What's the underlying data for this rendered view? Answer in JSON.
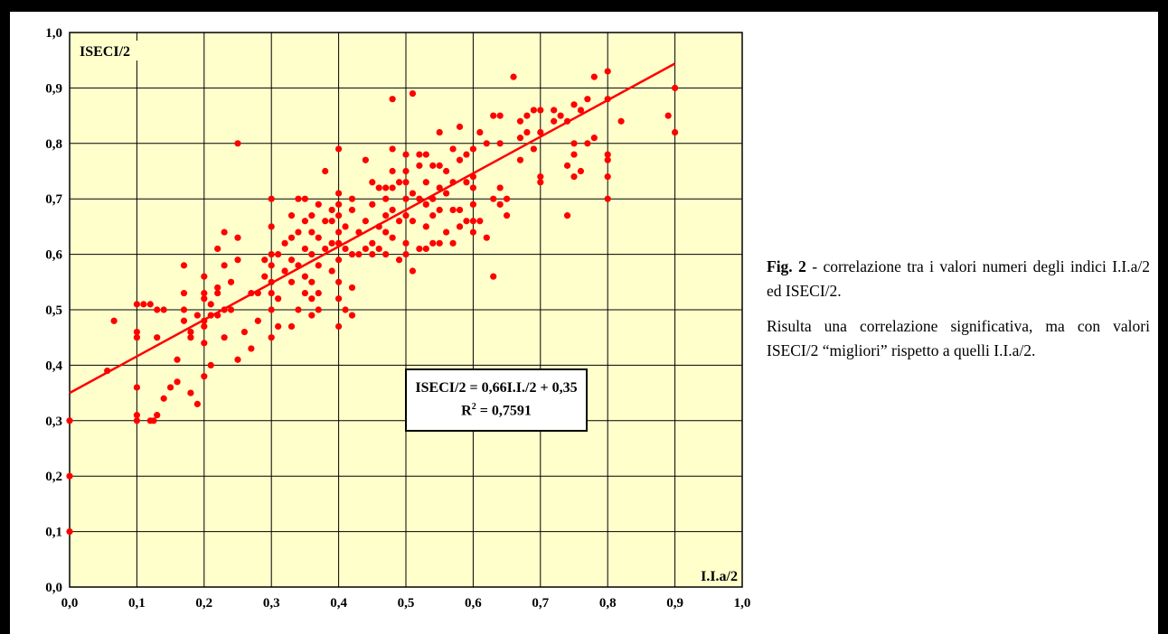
{
  "chart_data": {
    "type": "scatter",
    "ylabel": "ISECI/2",
    "xlabel": "I.I.a/2",
    "xlim": [
      0,
      1
    ],
    "ylim": [
      0,
      1
    ],
    "xticks": [
      "0,0",
      "0,1",
      "0,2",
      "0,3",
      "0,4",
      "0,5",
      "0,6",
      "0,7",
      "0,8",
      "0,9",
      "1,0"
    ],
    "yticks": [
      "0,0",
      "0,1",
      "0,2",
      "0,3",
      "0,4",
      "0,5",
      "0,6",
      "0,7",
      "0,8",
      "0,9",
      "1,0"
    ],
    "grid": true,
    "background": "#ffffcc",
    "point_color": "#ff0000",
    "trendline": {
      "slope": 0.66,
      "intercept": 0.35,
      "x_range": [
        0,
        0.9
      ],
      "color": "#ff0000"
    },
    "equation": {
      "line1": "ISECI/2 = 0,66I.I./2 + 0,35",
      "line2_prefix": "R",
      "line2_sup": "2",
      "line2_suffix": " = 0,7591"
    },
    "points": [
      [
        0,
        0.3
      ],
      [
        0,
        0.2
      ],
      [
        0,
        0.1
      ],
      [
        0.056,
        0.39
      ],
      [
        0.066,
        0.48
      ],
      [
        0.1,
        0.3
      ],
      [
        0.1,
        0.31
      ],
      [
        0.1,
        0.36
      ],
      [
        0.1,
        0.45
      ],
      [
        0.1,
        0.46
      ],
      [
        0.1,
        0.51
      ],
      [
        0.11,
        0.51
      ],
      [
        0.12,
        0.51
      ],
      [
        0.12,
        0.3
      ],
      [
        0.125,
        0.3
      ],
      [
        0.13,
        0.31
      ],
      [
        0.13,
        0.45
      ],
      [
        0.13,
        0.5
      ],
      [
        0.14,
        0.5
      ],
      [
        0.14,
        0.34
      ],
      [
        0.15,
        0.36
      ],
      [
        0.16,
        0.41
      ],
      [
        0.16,
        0.37
      ],
      [
        0.17,
        0.53
      ],
      [
        0.17,
        0.5
      ],
      [
        0.17,
        0.48
      ],
      [
        0.17,
        0.58
      ],
      [
        0.18,
        0.46
      ],
      [
        0.18,
        0.45
      ],
      [
        0.18,
        0.35
      ],
      [
        0.19,
        0.33
      ],
      [
        0.19,
        0.49
      ],
      [
        0.2,
        0.38
      ],
      [
        0.2,
        0.44
      ],
      [
        0.2,
        0.47
      ],
      [
        0.2,
        0.48
      ],
      [
        0.2,
        0.52
      ],
      [
        0.2,
        0.53
      ],
      [
        0.2,
        0.56
      ],
      [
        0.21,
        0.4
      ],
      [
        0.21,
        0.49
      ],
      [
        0.21,
        0.51
      ],
      [
        0.22,
        0.49
      ],
      [
        0.22,
        0.53
      ],
      [
        0.22,
        0.54
      ],
      [
        0.22,
        0.61
      ],
      [
        0.23,
        0.45
      ],
      [
        0.23,
        0.5
      ],
      [
        0.23,
        0.58
      ],
      [
        0.23,
        0.64
      ],
      [
        0.24,
        0.5
      ],
      [
        0.24,
        0.55
      ],
      [
        0.25,
        0.41
      ],
      [
        0.25,
        0.63
      ],
      [
        0.25,
        0.8
      ],
      [
        0.25,
        0.59
      ],
      [
        0.26,
        0.46
      ],
      [
        0.27,
        0.43
      ],
      [
        0.27,
        0.53
      ],
      [
        0.28,
        0.48
      ],
      [
        0.28,
        0.53
      ],
      [
        0.29,
        0.56
      ],
      [
        0.29,
        0.59
      ],
      [
        0.3,
        0.45
      ],
      [
        0.3,
        0.5
      ],
      [
        0.3,
        0.53
      ],
      [
        0.3,
        0.55
      ],
      [
        0.3,
        0.58
      ],
      [
        0.3,
        0.6
      ],
      [
        0.3,
        0.65
      ],
      [
        0.3,
        0.7
      ],
      [
        0.31,
        0.47
      ],
      [
        0.31,
        0.52
      ],
      [
        0.31,
        0.6
      ],
      [
        0.32,
        0.57
      ],
      [
        0.32,
        0.62
      ],
      [
        0.33,
        0.47
      ],
      [
        0.33,
        0.55
      ],
      [
        0.33,
        0.59
      ],
      [
        0.33,
        0.63
      ],
      [
        0.33,
        0.67
      ],
      [
        0.34,
        0.5
      ],
      [
        0.34,
        0.58
      ],
      [
        0.34,
        0.64
      ],
      [
        0.34,
        0.7
      ],
      [
        0.35,
        0.53
      ],
      [
        0.35,
        0.56
      ],
      [
        0.35,
        0.61
      ],
      [
        0.35,
        0.66
      ],
      [
        0.35,
        0.7
      ],
      [
        0.36,
        0.49
      ],
      [
        0.36,
        0.52
      ],
      [
        0.36,
        0.55
      ],
      [
        0.36,
        0.6
      ],
      [
        0.36,
        0.64
      ],
      [
        0.36,
        0.67
      ],
      [
        0.37,
        0.5
      ],
      [
        0.37,
        0.53
      ],
      [
        0.37,
        0.58
      ],
      [
        0.37,
        0.63
      ],
      [
        0.37,
        0.69
      ],
      [
        0.38,
        0.61
      ],
      [
        0.38,
        0.66
      ],
      [
        0.38,
        0.75
      ],
      [
        0.39,
        0.57
      ],
      [
        0.39,
        0.62
      ],
      [
        0.39,
        0.66
      ],
      [
        0.39,
        0.68
      ],
      [
        0.4,
        0.47
      ],
      [
        0.4,
        0.52
      ],
      [
        0.4,
        0.55
      ],
      [
        0.4,
        0.59
      ],
      [
        0.4,
        0.62
      ],
      [
        0.4,
        0.64
      ],
      [
        0.4,
        0.67
      ],
      [
        0.4,
        0.69
      ],
      [
        0.4,
        0.71
      ],
      [
        0.4,
        0.79
      ],
      [
        0.41,
        0.5
      ],
      [
        0.41,
        0.61
      ],
      [
        0.41,
        0.65
      ],
      [
        0.42,
        0.49
      ],
      [
        0.42,
        0.54
      ],
      [
        0.42,
        0.6
      ],
      [
        0.42,
        0.68
      ],
      [
        0.42,
        0.7
      ],
      [
        0.43,
        0.6
      ],
      [
        0.43,
        0.64
      ],
      [
        0.44,
        0.61
      ],
      [
        0.44,
        0.66
      ],
      [
        0.44,
        0.77
      ],
      [
        0.45,
        0.6
      ],
      [
        0.45,
        0.62
      ],
      [
        0.45,
        0.69
      ],
      [
        0.45,
        0.73
      ],
      [
        0.46,
        0.61
      ],
      [
        0.46,
        0.65
      ],
      [
        0.46,
        0.72
      ],
      [
        0.47,
        0.6
      ],
      [
        0.47,
        0.64
      ],
      [
        0.47,
        0.67
      ],
      [
        0.47,
        0.7
      ],
      [
        0.47,
        0.72
      ],
      [
        0.48,
        0.63
      ],
      [
        0.48,
        0.68
      ],
      [
        0.48,
        0.72
      ],
      [
        0.48,
        0.75
      ],
      [
        0.48,
        0.79
      ],
      [
        0.48,
        0.88
      ],
      [
        0.49,
        0.59
      ],
      [
        0.49,
        0.66
      ],
      [
        0.49,
        0.73
      ],
      [
        0.5,
        0.6
      ],
      [
        0.5,
        0.62
      ],
      [
        0.5,
        0.67
      ],
      [
        0.5,
        0.7
      ],
      [
        0.5,
        0.73
      ],
      [
        0.5,
        0.75
      ],
      [
        0.5,
        0.78
      ],
      [
        0.51,
        0.89
      ],
      [
        0.51,
        0.57
      ],
      [
        0.51,
        0.66
      ],
      [
        0.51,
        0.71
      ],
      [
        0.52,
        0.61
      ],
      [
        0.52,
        0.7
      ],
      [
        0.52,
        0.76
      ],
      [
        0.52,
        0.78
      ],
      [
        0.53,
        0.61
      ],
      [
        0.53,
        0.65
      ],
      [
        0.53,
        0.69
      ],
      [
        0.53,
        0.73
      ],
      [
        0.53,
        0.78
      ],
      [
        0.54,
        0.62
      ],
      [
        0.54,
        0.67
      ],
      [
        0.54,
        0.7
      ],
      [
        0.54,
        0.76
      ],
      [
        0.55,
        0.62
      ],
      [
        0.55,
        0.68
      ],
      [
        0.55,
        0.72
      ],
      [
        0.55,
        0.76
      ],
      [
        0.55,
        0.82
      ],
      [
        0.56,
        0.64
      ],
      [
        0.56,
        0.71
      ],
      [
        0.56,
        0.75
      ],
      [
        0.57,
        0.62
      ],
      [
        0.57,
        0.68
      ],
      [
        0.57,
        0.73
      ],
      [
        0.57,
        0.79
      ],
      [
        0.58,
        0.65
      ],
      [
        0.58,
        0.68
      ],
      [
        0.58,
        0.77
      ],
      [
        0.58,
        0.83
      ],
      [
        0.59,
        0.66
      ],
      [
        0.59,
        0.73
      ],
      [
        0.59,
        0.78
      ],
      [
        0.6,
        0.64
      ],
      [
        0.6,
        0.66
      ],
      [
        0.6,
        0.69
      ],
      [
        0.6,
        0.72
      ],
      [
        0.6,
        0.74
      ],
      [
        0.6,
        0.79
      ],
      [
        0.61,
        0.66
      ],
      [
        0.61,
        0.82
      ],
      [
        0.62,
        0.63
      ],
      [
        0.62,
        0.8
      ],
      [
        0.63,
        0.7
      ],
      [
        0.63,
        0.56
      ],
      [
        0.63,
        0.85
      ],
      [
        0.64,
        0.69
      ],
      [
        0.64,
        0.72
      ],
      [
        0.64,
        0.8
      ],
      [
        0.64,
        0.85
      ],
      [
        0.65,
        0.67
      ],
      [
        0.65,
        0.7
      ],
      [
        0.66,
        0.92
      ],
      [
        0.67,
        0.77
      ],
      [
        0.67,
        0.81
      ],
      [
        0.67,
        0.84
      ],
      [
        0.68,
        0.82
      ],
      [
        0.68,
        0.85
      ],
      [
        0.69,
        0.79
      ],
      [
        0.69,
        0.86
      ],
      [
        0.7,
        0.73
      ],
      [
        0.7,
        0.74
      ],
      [
        0.7,
        0.82
      ],
      [
        0.7,
        0.86
      ],
      [
        0.72,
        0.84
      ],
      [
        0.72,
        0.86
      ],
      [
        0.73,
        0.85
      ],
      [
        0.74,
        0.67
      ],
      [
        0.74,
        0.76
      ],
      [
        0.74,
        0.84
      ],
      [
        0.75,
        0.74
      ],
      [
        0.75,
        0.78
      ],
      [
        0.75,
        0.8
      ],
      [
        0.75,
        0.87
      ],
      [
        0.76,
        0.75
      ],
      [
        0.76,
        0.86
      ],
      [
        0.77,
        0.8
      ],
      [
        0.77,
        0.88
      ],
      [
        0.78,
        0.92
      ],
      [
        0.78,
        0.81
      ],
      [
        0.8,
        0.7
      ],
      [
        0.8,
        0.74
      ],
      [
        0.8,
        0.77
      ],
      [
        0.8,
        0.78
      ],
      [
        0.8,
        0.88
      ],
      [
        0.8,
        0.93
      ],
      [
        0.82,
        0.84
      ],
      [
        0.89,
        0.85
      ],
      [
        0.9,
        0.82
      ],
      [
        0.9,
        0.9
      ]
    ]
  },
  "caption": {
    "fig_label": "Fig. 2",
    "p1_rest": " - correlazione tra i valori numeri degli indici I.I.a/2 ed ISECI/2.",
    "p2": "Risulta una correlazione significativa, ma con valori ISECI/2 “migliori” rispetto a quelli I.I.a/2."
  }
}
